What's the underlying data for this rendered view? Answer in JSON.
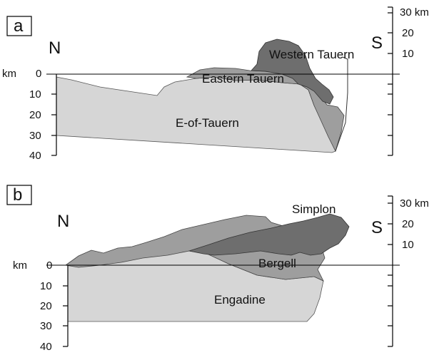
{
  "panel_a": {
    "label": "a",
    "north": "N",
    "south": "S",
    "units_left": "km",
    "units_right": "30 km",
    "left_ticks": [
      "0",
      "10",
      "20",
      "30",
      "40"
    ],
    "right_ticks": [
      "20",
      "10"
    ],
    "units": [
      "Western Tauern",
      "Eastern Tauern",
      "E-of-Tauern"
    ]
  },
  "panel_b": {
    "label": "b",
    "north": "N",
    "south": "S",
    "units_left": "km",
    "units_right": "30 km",
    "left_ticks": [
      "0",
      "10",
      "20",
      "30",
      "40"
    ],
    "right_ticks": [
      "20",
      "10"
    ],
    "units": [
      "Simplon",
      "Bergell",
      "Engadine"
    ]
  },
  "colors": {
    "light": "#d6d6d6",
    "medium": "#9e9e9e",
    "dark": "#6e6e6e"
  }
}
